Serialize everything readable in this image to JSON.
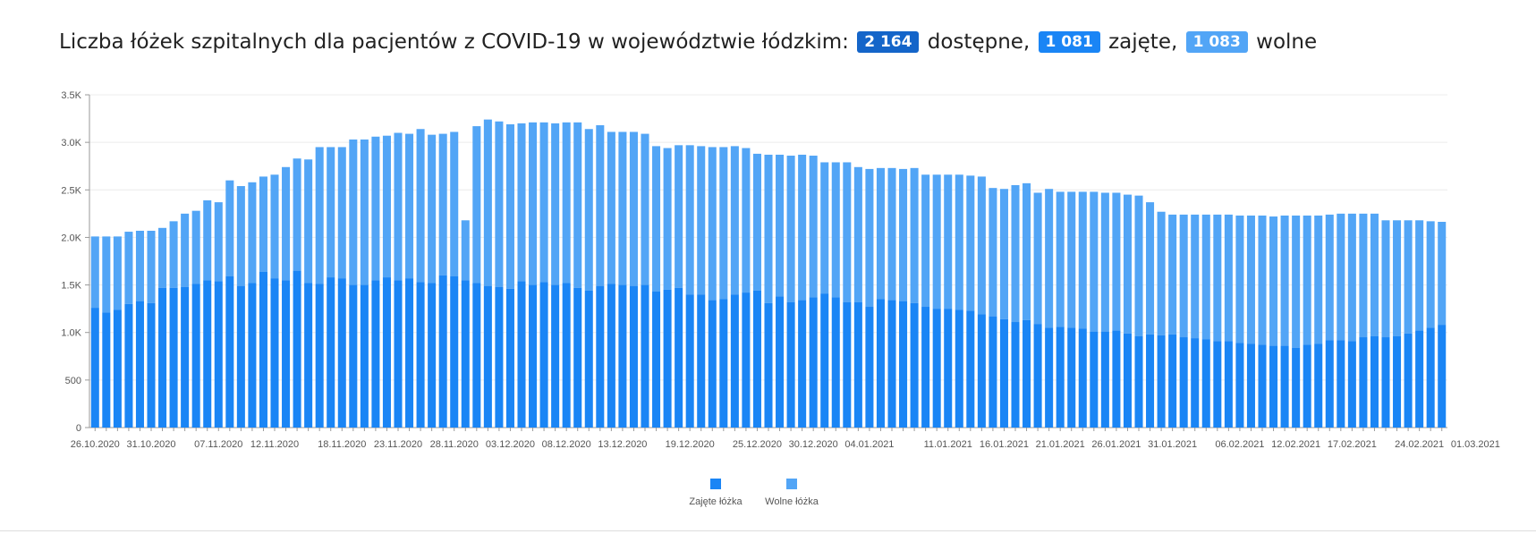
{
  "title": {
    "text": "Liczba łóżek szpitalnych dla pacjentów z COVID-19 w województwie łódzkim:",
    "available_value": "2 164",
    "available_label": "dostępne,",
    "occupied_value": "1 081",
    "occupied_label": "zajęte,",
    "free_value": "1 083",
    "free_label": "wolne"
  },
  "colors": {
    "occupied": "#1a85f5",
    "free": "#52a5f6",
    "badge_available": "#1465c9"
  },
  "chart_data": {
    "type": "bar",
    "stacked": true,
    "ylim": [
      0,
      3500
    ],
    "y_ticks": [
      "0",
      "500",
      "1.0K",
      "1.5K",
      "2.0K",
      "2.5K",
      "3.0K",
      "3.5K"
    ],
    "y_tick_values": [
      0,
      500,
      1000,
      1500,
      2000,
      2500,
      3000,
      3500
    ],
    "x_tick_labels": [
      "26.10.2020",
      "31.10.2020",
      "07.11.2020",
      "12.11.2020",
      "18.11.2020",
      "23.11.2020",
      "28.11.2020",
      "03.12.2020",
      "08.12.2020",
      "13.12.2020",
      "19.12.2020",
      "25.12.2020",
      "30.12.2020",
      "04.01.2021",
      "11.01.2021",
      "16.01.2021",
      "21.01.2021",
      "26.01.2021",
      "31.01.2021",
      "06.02.2021",
      "12.02.2021",
      "17.02.2021",
      "24.02.2021",
      "01.03.2021"
    ],
    "x_tick_positions": [
      0,
      5,
      11,
      16,
      22,
      27,
      32,
      37,
      42,
      47,
      53,
      59,
      64,
      69,
      76,
      81,
      86,
      91,
      96,
      102,
      107,
      112,
      118,
      123
    ],
    "grid": true,
    "legend_position": "bottom",
    "series": [
      {
        "name": "Zajęte łóżka",
        "values": [
          1260,
          1210,
          1240,
          1300,
          1330,
          1310,
          1470,
          1470,
          1480,
          1510,
          1550,
          1540,
          1590,
          1490,
          1520,
          1640,
          1570,
          1550,
          1650,
          1520,
          1510,
          1580,
          1570,
          1500,
          1500,
          1550,
          1580,
          1550,
          1570,
          1530,
          1520,
          1600,
          1590,
          1550,
          1520,
          1490,
          1480,
          1460,
          1540,
          1500,
          1530,
          1500,
          1520,
          1470,
          1440,
          1490,
          1510,
          1500,
          1490,
          1500,
          1430,
          1450,
          1470,
          1400,
          1400,
          1340,
          1350,
          1400,
          1420,
          1440,
          1310,
          1380,
          1320,
          1340,
          1370,
          1410,
          1370,
          1320,
          1320,
          1270,
          1350,
          1340,
          1330,
          1310,
          1270,
          1250,
          1250,
          1240,
          1230,
          1190,
          1170,
          1140,
          1110,
          1130,
          1090,
          1050,
          1060,
          1050,
          1040,
          1010,
          1010,
          1020,
          990,
          960,
          980,
          970,
          980,
          950,
          940,
          930,
          910,
          910,
          890,
          880,
          870,
          860,
          860,
          840,
          870,
          880,
          920,
          920,
          910,
          950,
          960,
          950,
          960,
          990,
          1020,
          1050,
          1081
        ],
        "totals": [
          2010,
          2010,
          2010,
          2060,
          2070,
          2070,
          2100,
          2170,
          2250,
          2280,
          2390,
          2370,
          2600,
          2540,
          2580,
          2640,
          2660,
          2740,
          2830,
          2820,
          2950,
          2950,
          2950,
          3030,
          3030,
          3060,
          3070,
          3100,
          3090,
          3140,
          3080,
          3090,
          3110,
          2180,
          3170,
          3240,
          3220,
          3190,
          3200,
          3210,
          3210,
          3200,
          3210,
          3210,
          3140,
          3180,
          3110,
          3110,
          3110,
          3090,
          2960,
          2940,
          2970,
          2970,
          2960,
          2950,
          2950,
          2960,
          2940,
          2880,
          2870,
          2870,
          2860,
          2870,
          2860,
          2790,
          2790,
          2790,
          2740,
          2720,
          2730,
          2730,
          2720,
          2730,
          2660,
          2660,
          2660,
          2660,
          2650,
          2640,
          2520,
          2510,
          2550,
          2570,
          2470,
          2510,
          2480,
          2480,
          2480,
          2480,
          2470,
          2470,
          2450,
          2440,
          2370,
          2270,
          2240,
          2240,
          2240,
          2240,
          2240,
          2240,
          2230,
          2230,
          2230,
          2220,
          2230,
          2230,
          2230,
          2230,
          2240,
          2250,
          2250,
          2250,
          2250,
          2180,
          2180,
          2180,
          2180,
          2170,
          2164
        ]
      },
      {
        "name": "Wolne łóżka",
        "values": "totals_minus_occupied"
      }
    ]
  },
  "legend": {
    "occupied": "Zajęte łóżka",
    "free": "Wolne łóżka"
  }
}
